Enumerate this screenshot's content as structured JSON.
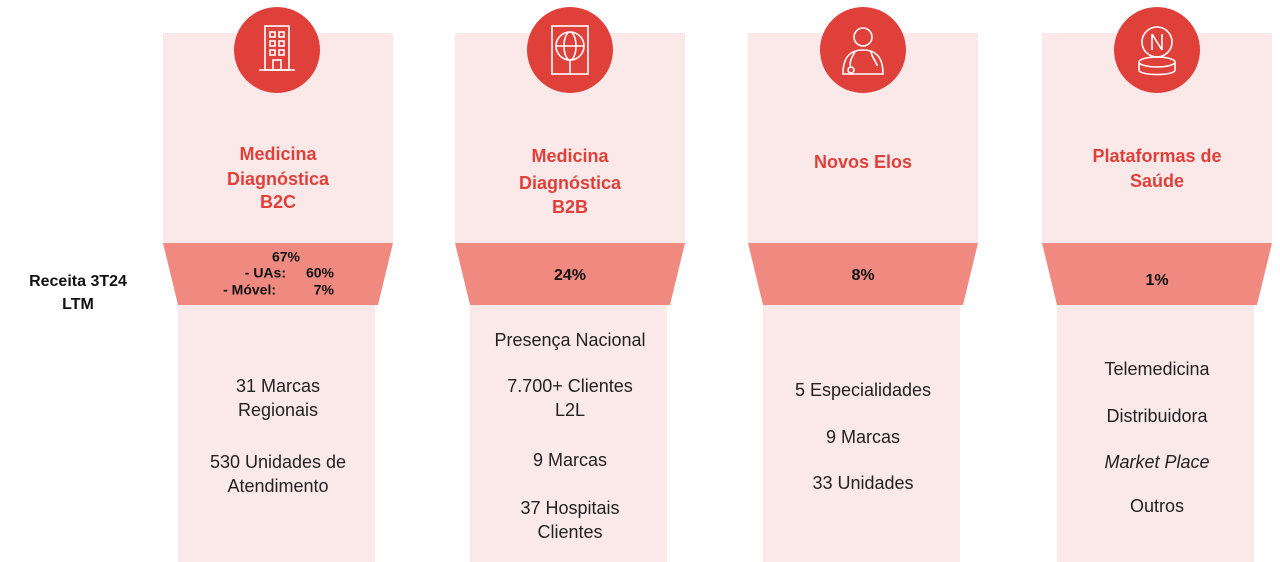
{
  "row_label": [
    "Receita 3T24",
    "LTM"
  ],
  "columns": [
    {
      "title": [
        "Medicina",
        "Diagnóstica",
        "B2C"
      ],
      "revenue": {
        "total": "67%",
        "breakdown": [
          {
            "label": "- UAs:",
            "value": "60%"
          },
          {
            "label": "- Móvel:",
            "value": "7%"
          }
        ]
      },
      "items": [
        {
          "lines": [
            "31 Marcas",
            "Regionais"
          ]
        },
        {
          "lines": [
            "530 Unidades de",
            "Atendimento"
          ]
        }
      ]
    },
    {
      "title": [
        "Medicina",
        "Diagnóstica",
        "B2B"
      ],
      "revenue": {
        "total": "24%"
      },
      "items": [
        {
          "lines": [
            "Presença Nacional"
          ]
        },
        {
          "lines": [
            "7.700+ Clientes",
            "L2L"
          ]
        },
        {
          "lines": [
            "9 Marcas"
          ]
        },
        {
          "lines": [
            "37 Hospitais",
            "Clientes"
          ]
        }
      ]
    },
    {
      "title": [
        "Novos Elos"
      ],
      "revenue": {
        "total": "8%"
      },
      "items": [
        {
          "lines": [
            "5 Especialidades"
          ]
        },
        {
          "lines": [
            "9 Marcas"
          ]
        },
        {
          "lines": [
            "33 Unidades"
          ]
        }
      ]
    },
    {
      "title": [
        "Plataformas de",
        "Saúde"
      ],
      "revenue": {
        "total": "1%"
      },
      "items": [
        {
          "lines": [
            "Telemedicina"
          ]
        },
        {
          "lines": [
            "Distribuidora"
          ]
        },
        {
          "lines": [
            "Market Place"
          ],
          "style": "italic"
        },
        {
          "lines": [
            "Outros"
          ]
        }
      ]
    }
  ]
}
